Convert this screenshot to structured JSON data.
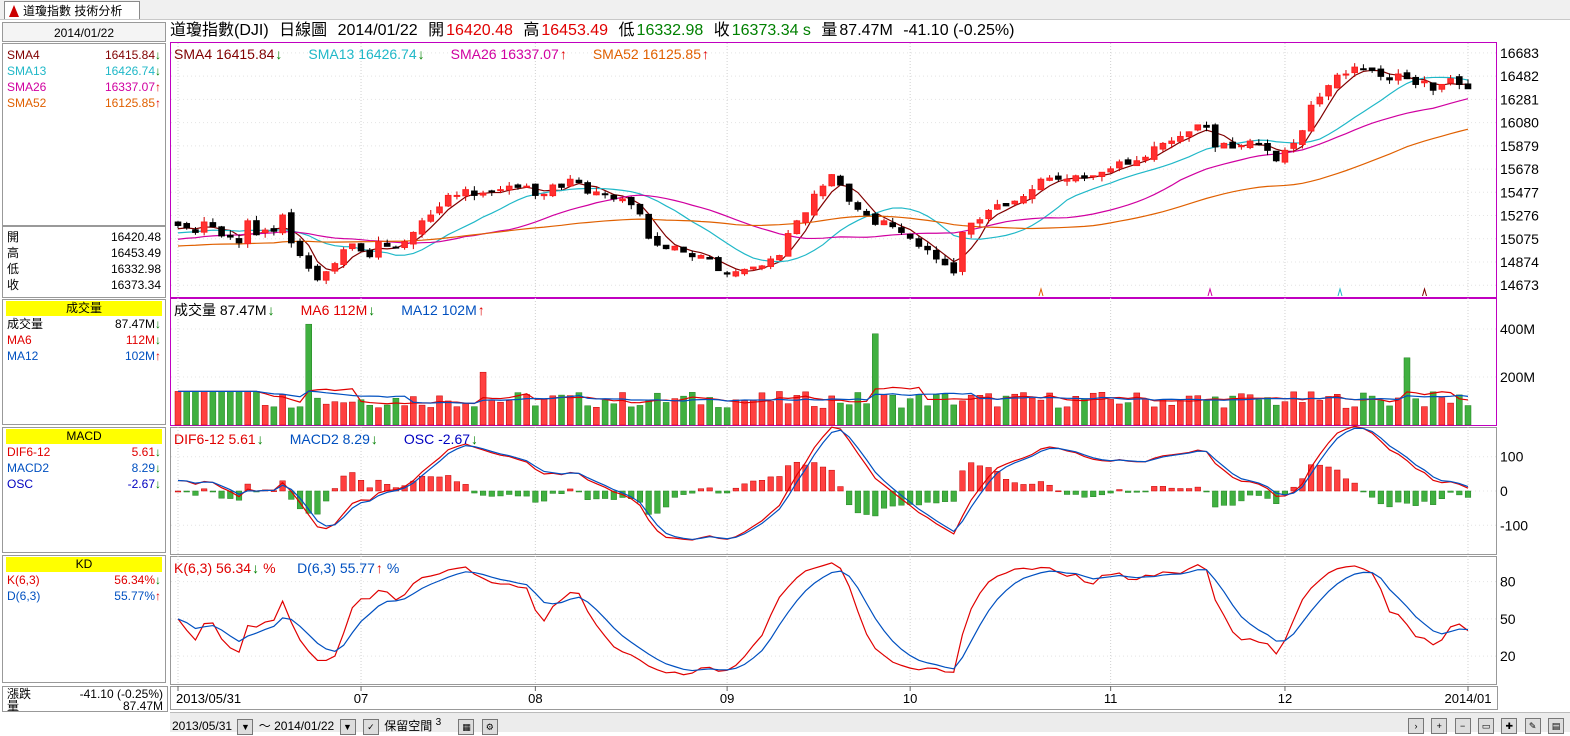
{
  "tab": {
    "label": "道瓊指數 技術分析"
  },
  "header": {
    "title": "道瓊指數(DJI)",
    "period": "日線圖",
    "date": "2014/01/22",
    "open_label": "開",
    "open": "16420.48",
    "high_label": "高",
    "high": "16453.49",
    "low_label": "低",
    "low": "16332.98",
    "close_label": "收",
    "close": "16373.34 s",
    "vol_label": "量",
    "volume": "87.47M",
    "change": "-41.10 (-0.25%)"
  },
  "left": {
    "date": "2014/01/22",
    "sma": [
      {
        "label": "SMA4",
        "value": "16415.84",
        "dir": "down",
        "color": "#800000"
      },
      {
        "label": "SMA13",
        "value": "16426.74",
        "dir": "down",
        "color": "#20b8c8"
      },
      {
        "label": "SMA26",
        "value": "16337.07",
        "dir": "up",
        "color": "#d000a0"
      },
      {
        "label": "SMA52",
        "value": "16125.85",
        "dir": "up",
        "color": "#e06000"
      }
    ],
    "ohlc": [
      {
        "label": "開",
        "value": "16420.48"
      },
      {
        "label": "高",
        "value": "16453.49"
      },
      {
        "label": "低",
        "value": "16332.98"
      },
      {
        "label": "收",
        "value": "16373.34"
      }
    ],
    "volume_title": "成交量",
    "volume_rows": [
      {
        "label": "成交量",
        "value": "87.47M",
        "dir": "down",
        "color": "#000"
      },
      {
        "label": "MA6",
        "value": "112M",
        "dir": "down",
        "color": "#e00000"
      },
      {
        "label": "MA12",
        "value": "102M",
        "dir": "up",
        "color": "#0050c0"
      }
    ],
    "macd_title": "MACD",
    "macd_rows": [
      {
        "label": "DIF6-12",
        "value": "5.61",
        "dir": "down",
        "color": "#e00000"
      },
      {
        "label": "MACD2",
        "value": "8.29",
        "dir": "down",
        "color": "#0050c0"
      },
      {
        "label": "OSC",
        "value": "-2.67",
        "dir": "down",
        "color": "#0000c0"
      }
    ],
    "kd_title": "KD",
    "kd_rows": [
      {
        "label": "K(6,3)",
        "value": "56.34%",
        "dir": "down",
        "color": "#e00000"
      },
      {
        "label": "D(6,3)",
        "value": "55.77%",
        "dir": "up",
        "color": "#0050c0"
      }
    ],
    "bottom": [
      {
        "label": "漲跌",
        "value": "-41.10 (-0.25%)"
      },
      {
        "label": "量",
        "value": "87.47M"
      }
    ]
  },
  "legend": {
    "price": [
      {
        "text": "SMA4 16415.84",
        "dir": "down",
        "color": "#800000"
      },
      {
        "text": "SMA13 16426.74",
        "dir": "down",
        "color": "#20b8c8"
      },
      {
        "text": "SMA26 16337.07",
        "dir": "up",
        "color": "#d000a0"
      },
      {
        "text": "SMA52 16125.85",
        "dir": "up",
        "color": "#e06000"
      }
    ],
    "volume": [
      {
        "text": "成交量 87.47M",
        "dir": "down",
        "color": "#000"
      },
      {
        "text": "MA6 112M",
        "dir": "down",
        "color": "#e00000"
      },
      {
        "text": "MA12 102M",
        "dir": "up",
        "color": "#0050c0"
      }
    ],
    "macd": [
      {
        "text": "DIF6-12 5.61",
        "dir": "down",
        "color": "#e00000"
      },
      {
        "text": "MACD2 8.29",
        "dir": "down",
        "color": "#0050c0"
      },
      {
        "text": "OSC -2.67",
        "dir": "down",
        "color": "#0000c0"
      }
    ],
    "kd": [
      {
        "text": "K(6,3) 56.34",
        "dir": "down",
        "suffix": "%",
        "color": "#e00000"
      },
      {
        "text": "D(6,3) 55.77",
        "dir": "up",
        "suffix": "%",
        "color": "#0050c0"
      }
    ]
  },
  "axis": {
    "price_ticks": [
      "16683",
      "16482",
      "16281",
      "16080",
      "15879",
      "15678",
      "15477",
      "15276",
      "15075",
      "14874",
      "14673"
    ],
    "volume_ticks": [
      "400M",
      "200M"
    ],
    "macd_ticks": [
      "100",
      "0",
      "-100"
    ],
    "kd_ticks": [
      "80",
      "50",
      "20"
    ],
    "months": [
      "2013/05/31",
      "07",
      "08",
      "09",
      "10",
      "11",
      "12",
      "2014/01"
    ]
  },
  "toolbar": {
    "from": "2013/05/31",
    "to": "2014/01/22",
    "tilde": "～",
    "reserve": "保留空間",
    "reserve_num": "3"
  },
  "colors": {
    "up": "#e00000",
    "down": "#008000",
    "frame": "#c000c0"
  },
  "chart_data": [
    {
      "type": "candlestick",
      "series_close": [
        15190,
        15170,
        15130,
        15220,
        15180,
        15100,
        15090,
        15040,
        15230,
        15110,
        15150,
        15140,
        15280,
        15040,
        14930,
        14820,
        14720,
        14790,
        14860,
        14980,
        15030,
        14970,
        14920,
        15050,
        15010,
        15000,
        15050,
        15130,
        15230,
        15280,
        15350,
        15450,
        15450,
        15500,
        15450,
        15470,
        15480,
        15500,
        15530,
        15520,
        15530,
        15450,
        15460,
        15540,
        15520,
        15590,
        15560,
        15470,
        15480,
        15460,
        15420,
        15420,
        15370,
        15290,
        15080,
        15020,
        14990,
        15010,
        14960,
        14920,
        14930,
        14900,
        14800,
        14770,
        14790,
        14810,
        14830,
        14840,
        14900,
        14930,
        15120,
        15230,
        15300,
        15460,
        15530,
        15630,
        15540,
        15400,
        15330,
        15280,
        15200,
        15230,
        15180,
        15130,
        15080,
        15010,
        14980,
        14900,
        14850,
        14780,
        15130,
        15210,
        15240,
        15320,
        15370,
        15360,
        15400,
        15440,
        15500,
        15590,
        15600,
        15590,
        15590,
        15620,
        15600,
        15620,
        15650,
        15680,
        15740,
        15720,
        15750,
        15780,
        15870,
        15900,
        15920,
        15960,
        16000,
        16060,
        16040,
        15870,
        15900,
        15860,
        15880,
        15920,
        15890,
        15840,
        15750,
        15840,
        15900,
        16010,
        16230,
        16300,
        16400,
        16490,
        16500,
        16560,
        16540,
        16530,
        16480,
        16450,
        16500,
        16460,
        16410,
        16440,
        16360,
        16410,
        16460,
        16410,
        16373
      ]
    }
  ]
}
